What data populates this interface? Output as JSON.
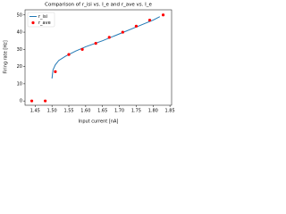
{
  "chart_data": {
    "type": "line",
    "title": "Comparison of r_isi vs. I_e and r_ave vs. I_e",
    "xlabel": "Input current [nA]",
    "ylabel": "Firing rate [Hz]",
    "xlim": [
      1.42,
      1.855
    ],
    "ylim": [
      -2.5,
      53
    ],
    "xticks": [
      1.45,
      {
        "value": 1.5,
        "label": "1.50"
      },
      1.55,
      {
        "value": 1.6,
        "label": "1.60"
      },
      1.65,
      {
        "value": 1.7,
        "label": "1.70"
      },
      1.75,
      {
        "value": 1.8,
        "label": "1.80"
      },
      1.85
    ],
    "yticks": [
      0,
      10,
      20,
      30,
      40,
      50
    ],
    "legend": "upper left",
    "series": [
      {
        "name": "r_isi",
        "type": "line",
        "color": "#1f77b4",
        "x": [
          1.5,
          1.503,
          1.51,
          1.52,
          1.54,
          1.57,
          1.6,
          1.65,
          1.7,
          1.75,
          1.8,
          1.82
        ],
        "values": [
          13,
          18,
          21,
          23.5,
          26,
          29,
          31.5,
          35,
          39,
          43,
          47,
          49
        ]
      },
      {
        "name": "r_ave",
        "type": "scatter",
        "color": "#ff0000",
        "x": [
          1.44,
          1.48,
          1.51,
          1.55,
          1.59,
          1.63,
          1.67,
          1.71,
          1.75,
          1.79,
          1.83
        ],
        "values": [
          0,
          0,
          17,
          27,
          30,
          33.5,
          37,
          40,
          43.5,
          47,
          50
        ]
      }
    ]
  }
}
